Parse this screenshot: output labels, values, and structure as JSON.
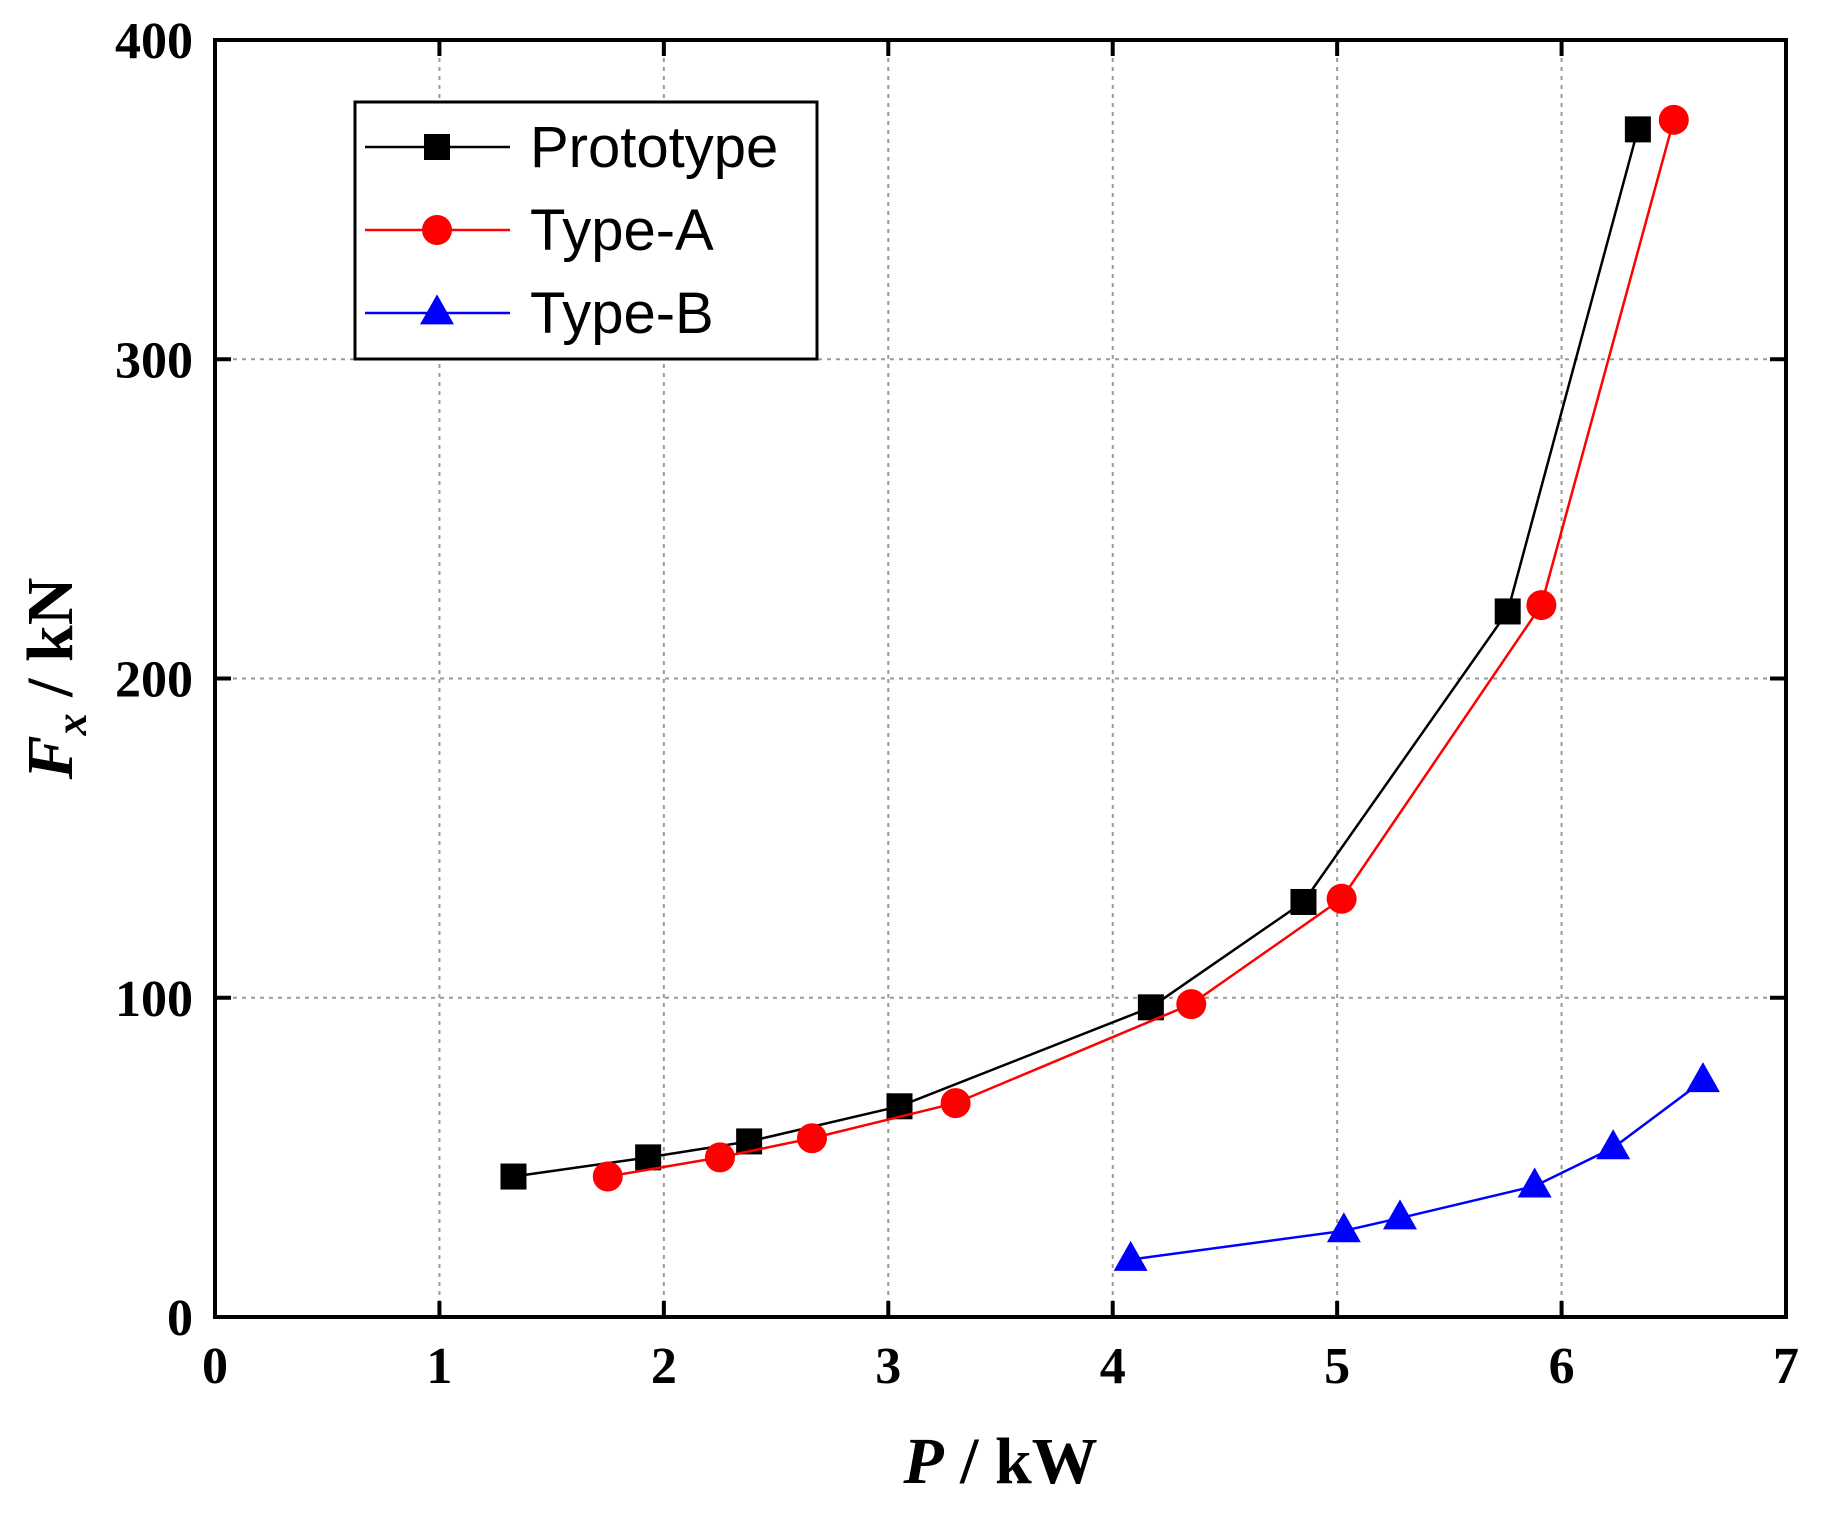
{
  "chart_data": {
    "type": "line",
    "title": "",
    "xlabel_main": "P",
    "xlabel_rest": " / kW",
    "ylabel_main": "F",
    "ylabel_sub": "x",
    "ylabel_rest": " / kN",
    "xlim": [
      0,
      7
    ],
    "ylim": [
      0,
      400
    ],
    "xticks": [
      0,
      1,
      2,
      3,
      4,
      5,
      6,
      7
    ],
    "yticks": [
      0,
      100,
      200,
      300,
      400
    ],
    "grid": true,
    "legend_position": "top-left",
    "series": [
      {
        "name": "Prototype",
        "color": "#000000",
        "marker": "square",
        "x": [
          1.33,
          1.93,
          2.38,
          3.05,
          4.17,
          4.85,
          5.76,
          6.34
        ],
        "y": [
          44,
          50,
          55,
          66,
          97,
          130,
          221,
          372
        ]
      },
      {
        "name": "Type-A",
        "color": "#ff0000",
        "marker": "circle",
        "x": [
          1.75,
          2.25,
          2.66,
          3.3,
          4.35,
          5.02,
          5.91,
          6.5
        ],
        "y": [
          44,
          50,
          56,
          67,
          98,
          131,
          223,
          375
        ]
      },
      {
        "name": "Type-B",
        "color": "#0000ff",
        "marker": "triangle",
        "x": [
          4.08,
          5.03,
          5.28,
          5.88,
          6.23,
          6.63
        ],
        "y": [
          18,
          27,
          31,
          41,
          53,
          74
        ]
      }
    ]
  }
}
